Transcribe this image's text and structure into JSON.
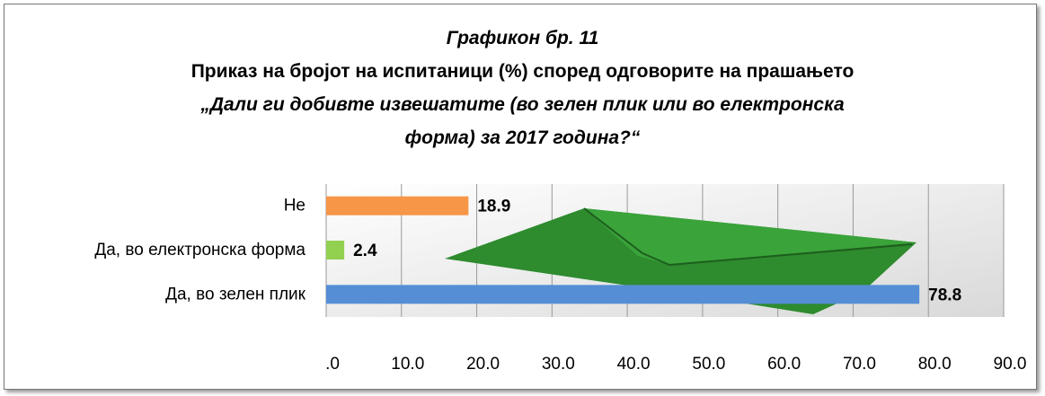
{
  "chart_data": {
    "type": "bar",
    "orientation": "horizontal",
    "title": "Графикон бр. 11",
    "subtitle": "Приказ на бројот на испитаници (%) според одговорите на прашањето",
    "question": "„Дали ги добивте извешатите (во зелен плик или во електронска форма) за 2017 година?“",
    "categories": [
      "Не",
      "Да, во електронска форма",
      "Да, во зелен плик"
    ],
    "values": [
      18.9,
      2.4,
      78.8
    ],
    "colors": [
      "#f79646",
      "#92d050",
      "#558ed5"
    ],
    "xlim": [
      0,
      90
    ],
    "xticks": [
      {
        "value": 0,
        "label": ".0"
      },
      {
        "value": 10,
        "label": "10.0"
      },
      {
        "value": 20,
        "label": "20.0"
      },
      {
        "value": 30,
        "label": "30.0"
      },
      {
        "value": 40,
        "label": "40.0"
      },
      {
        "value": 50,
        "label": "50.0"
      },
      {
        "value": 60,
        "label": "60.0"
      },
      {
        "value": 70,
        "label": "70.0"
      },
      {
        "value": 80,
        "label": "80.0"
      },
      {
        "value": 90,
        "label": "90.0"
      }
    ],
    "grid": true
  }
}
